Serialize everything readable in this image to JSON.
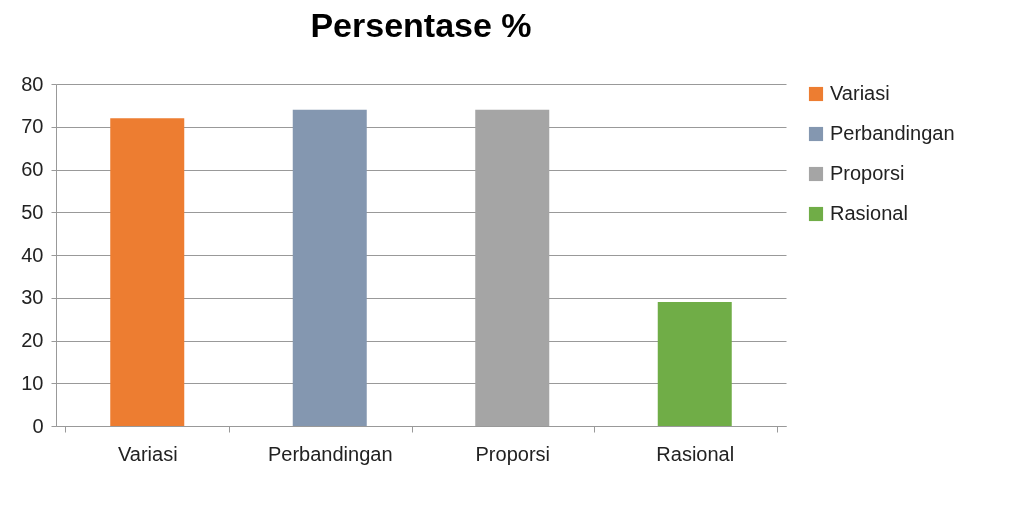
{
  "chart_data": {
    "type": "bar",
    "title": "Persentase %",
    "categories": [
      "Variasi",
      "Perbandingan",
      "Proporsi",
      "Rasional"
    ],
    "series": [
      {
        "name": "Variasi",
        "color": "#ed7d31",
        "values": [
          72,
          null,
          null,
          null
        ]
      },
      {
        "name": "Perbandingan",
        "color": "#8497b0",
        "values": [
          null,
          74,
          null,
          null
        ]
      },
      {
        "name": "Proporsi",
        "color": "#a5a5a5",
        "values": [
          null,
          null,
          74,
          null
        ]
      },
      {
        "name": "Rasional",
        "color": "#70ad47",
        "values": [
          null,
          null,
          null,
          29
        ]
      }
    ],
    "ylim": [
      0,
      80
    ],
    "yticks": [
      0,
      10,
      20,
      30,
      40,
      50,
      60,
      70,
      80
    ],
    "grid": "y",
    "legend": "right"
  }
}
